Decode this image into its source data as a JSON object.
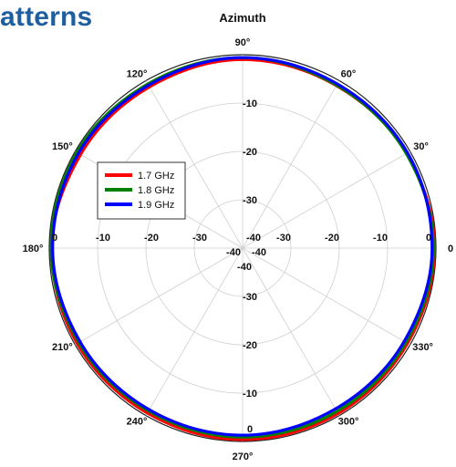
{
  "heading": "atterns",
  "chart_data": {
    "type": "polar-line",
    "title": "Azimuth",
    "radial_unit": "dB",
    "radial_range": [
      -40,
      0
    ],
    "radial_ticks": [
      -40,
      -30,
      -20,
      -10,
      0
    ],
    "radial_tick_labels": [
      "-40",
      "-30",
      "-20",
      "-10",
      "0"
    ],
    "angle_ticks_deg": [
      0,
      30,
      60,
      90,
      120,
      150,
      180,
      210,
      240,
      270,
      300,
      330
    ],
    "angle_tick_labels": [
      "0",
      "30°",
      "60°",
      "90°",
      "120°",
      "150°",
      "180°",
      "210°",
      "240°",
      "270°",
      "300°",
      "330°"
    ],
    "grid": true,
    "legend_position": "left",
    "series": [
      {
        "name": "1.7 GHz",
        "color": "#ff0000",
        "angles_deg": [
          0,
          30,
          60,
          90,
          120,
          150,
          180,
          210,
          240,
          270,
          300,
          330,
          360
        ],
        "values_db": [
          -0.3,
          -0.8,
          -1.2,
          -1.0,
          -1.5,
          -1.3,
          -0.5,
          -0.5,
          -0.6,
          -0.4,
          -0.5,
          -0.6,
          -0.3
        ]
      },
      {
        "name": "1.8 GHz",
        "color": "#008000",
        "angles_deg": [
          0,
          30,
          60,
          90,
          120,
          150,
          180,
          210,
          240,
          270,
          300,
          330,
          360
        ],
        "values_db": [
          -0.5,
          -0.9,
          -1.1,
          -0.6,
          -0.8,
          -0.4,
          -0.4,
          -0.9,
          -1.1,
          -0.9,
          -1.0,
          -1.0,
          -0.5
        ]
      },
      {
        "name": "1.9 GHz",
        "color": "#0000ff",
        "angles_deg": [
          0,
          30,
          60,
          90,
          120,
          150,
          180,
          210,
          240,
          270,
          300,
          330,
          360
        ],
        "values_db": [
          -0.8,
          -0.6,
          -0.8,
          -0.6,
          -1.1,
          -0.8,
          -0.7,
          -1.2,
          -1.4,
          -1.3,
          -1.6,
          -1.4,
          -0.8
        ]
      }
    ]
  }
}
